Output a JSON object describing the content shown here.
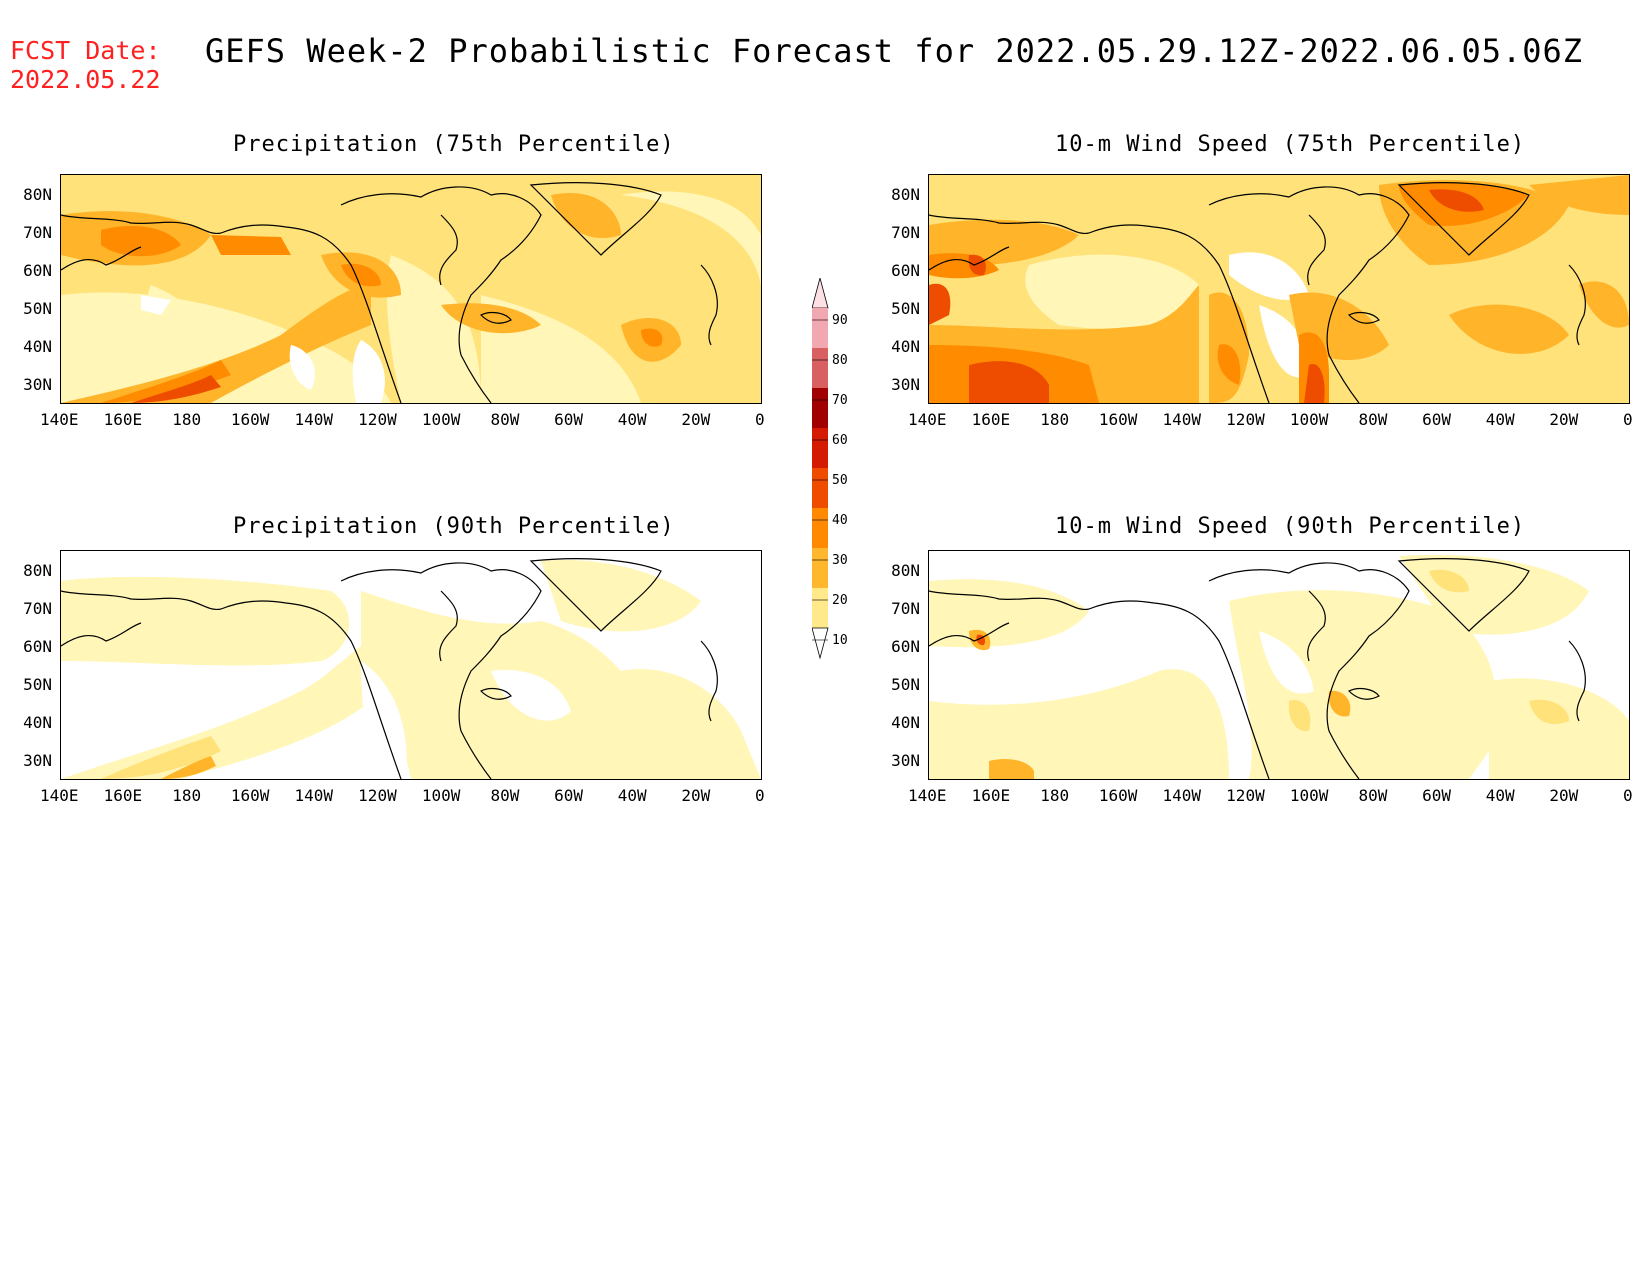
{
  "header": {
    "fcst_label": "FCST Date:",
    "fcst_date": "2022.05.22",
    "title": "GEFS Week-2 Probabilistic Forecast for 2022.05.29.12Z-2022.06.05.06Z"
  },
  "panels": [
    {
      "id": "precip75",
      "title": "Precipitation (75th Percentile)"
    },
    {
      "id": "wind75",
      "title": "10-m Wind Speed (75th Percentile)"
    },
    {
      "id": "precip90",
      "title": "Precipitation (90th Percentile)"
    },
    {
      "id": "wind90",
      "title": "10-m Wind Speed (90th Percentile)"
    }
  ],
  "axes": {
    "lon_ticks": [
      "140E",
      "160E",
      "180",
      "160W",
      "140W",
      "120W",
      "100W",
      "80W",
      "60W",
      "40W",
      "20W",
      "0"
    ],
    "lat_ticks": [
      "80N",
      "70N",
      "60N",
      "50N",
      "40N",
      "30N"
    ]
  },
  "legend": {
    "levels": [
      "10",
      "20",
      "30",
      "40",
      "50",
      "60",
      "70",
      "80",
      "90"
    ],
    "colors": [
      "#fff9c0",
      "#ffe98a",
      "#ffb72e",
      "#ff8a00",
      "#f04c00",
      "#d41a00",
      "#a00000",
      "#d86060",
      "#f2a8b0",
      "#fde0e4"
    ]
  },
  "colors": {
    "fcst": "#ff2020",
    "c10": "#fff6b8",
    "c20": "#ffe27a",
    "c30": "#ffb42a",
    "c40": "#ff8c00",
    "c50": "#ee4d00",
    "c60": "#c81800"
  }
}
